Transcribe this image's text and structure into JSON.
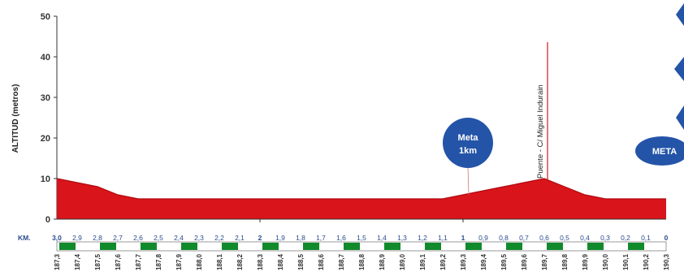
{
  "chart_data": {
    "type": "area",
    "ylabel": "ALTITUD (metros)",
    "ylim": [
      0,
      50
    ],
    "yticks": [
      "0",
      "10",
      "20",
      "30",
      "40",
      "50"
    ],
    "fill_color": "#d9141b",
    "line_color": "#b00a10",
    "x": [
      187.3,
      187.4,
      187.5,
      187.6,
      187.7,
      187.8,
      187.9,
      188.0,
      188.1,
      188.2,
      188.3,
      188.4,
      188.5,
      188.6,
      188.7,
      188.8,
      188.9,
      189.0,
      189.1,
      189.2,
      189.3,
      189.4,
      189.5,
      189.6,
      189.7,
      189.8,
      189.9,
      190.0,
      190.1,
      190.2,
      190.3
    ],
    "y": [
      10,
      9,
      8,
      6,
      5,
      5,
      5,
      5,
      5,
      5,
      5,
      5,
      5,
      5,
      5,
      5,
      5,
      5,
      5,
      5,
      6,
      7,
      8,
      9,
      10,
      8,
      6,
      5,
      5,
      5,
      5
    ],
    "km_label": "KM.",
    "km_remaining": [
      "3,0",
      "2,9",
      "2,8",
      "2,7",
      "2,6",
      "2,5",
      "2,4",
      "2,3",
      "2,2",
      "2,1",
      "2",
      "1,9",
      "1,8",
      "1,7",
      "1,6",
      "1,5",
      "1,4",
      "1,3",
      "1,2",
      "1,1",
      "1",
      "0,9",
      "0,8",
      "0,7",
      "0,6",
      "0,5",
      "0,4",
      "0,3",
      "0,2",
      "0,1",
      "0"
    ],
    "distance_labels": [
      "187,3",
      "187,4",
      "187,5",
      "187,6",
      "187,7",
      "187,8",
      "187,9",
      "188,0",
      "188,1",
      "188,2",
      "188,3",
      "188,4",
      "188,5",
      "188,6",
      "188,7",
      "188,8",
      "188,9",
      "189,0",
      "189,1",
      "189,2",
      "189,3",
      "189,4",
      "189,5",
      "189,6",
      "189,7",
      "189,8",
      "189,9",
      "190,0",
      "190,1",
      "190,2",
      "190,3"
    ],
    "strip_colors": [
      "#118a2c",
      "#ffffff"
    ],
    "badge_color": "#2454a8",
    "markers": {
      "meta_1km": {
        "line1": "Meta",
        "line2": "1km",
        "x": 189.3
      },
      "bridge": {
        "text": "Puente - C/ Miguel Indurain",
        "x": 189.7
      },
      "finish": {
        "text": "META",
        "x": 190.3
      }
    }
  }
}
